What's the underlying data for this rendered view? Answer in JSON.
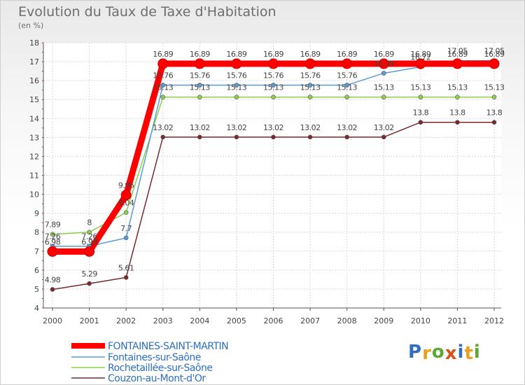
{
  "chart_data": {
    "type": "line",
    "title": "Evolution du Taux de Taxe d'Habitation",
    "ylabel": "(en %)",
    "xlabel": "",
    "ylim": [
      4,
      18
    ],
    "yticks": [
      "4",
      "5",
      "6",
      "7",
      "8",
      "9",
      "10",
      "11",
      "12",
      "13",
      "14",
      "15",
      "16",
      "17",
      "18"
    ],
    "x": [
      "2000",
      "2001",
      "2002",
      "2003",
      "2004",
      "2005",
      "2006",
      "2007",
      "2008",
      "2009",
      "2010",
      "2011",
      "2012"
    ],
    "series": [
      {
        "name": "FONTAINES-SAINT-MARTIN",
        "color": "#ff0000",
        "values": [
          6.98,
          6.98,
          9.96,
          16.89,
          16.89,
          16.89,
          16.89,
          16.89,
          16.89,
          16.89,
          16.89,
          16.89,
          16.89
        ],
        "labels": [
          "6.98",
          "6.98",
          "9.96",
          "16.89",
          "16.89",
          "16.89",
          "16.89",
          "16.89",
          "16.89",
          "16.89",
          "16.89",
          "16.89",
          "16.89"
        ]
      },
      {
        "name": "Fontaines-sur-Saône",
        "color": "#5b9bd5",
        "values": [
          7.26,
          7.26,
          7.7,
          15.76,
          15.76,
          15.76,
          15.76,
          15.76,
          15.76,
          16.39,
          16.72,
          17.05,
          17.05
        ],
        "labels": [
          "7.26",
          "7.26",
          "7.7",
          "15.76",
          "15.76",
          "15.76",
          "15.76",
          "15.76",
          "15.76",
          "16.39",
          "16.72",
          "17.05",
          "17.05"
        ]
      },
      {
        "name": "Rochetaillée-sur-Saône",
        "color": "#8ccf4d",
        "values": [
          7.89,
          8,
          9.04,
          15.13,
          15.13,
          15.13,
          15.13,
          15.13,
          15.13,
          15.13,
          15.13,
          15.13,
          15.13
        ],
        "labels": [
          "7.89",
          "8",
          "9.04",
          "15.13",
          "15.13",
          "15.13",
          "15.13",
          "15.13",
          "15.13",
          "15.13",
          "15.13",
          "15.13",
          "15.13"
        ]
      },
      {
        "name": "Couzon-au-Mont-d'Or",
        "color": "#7a2a2a",
        "values": [
          4.98,
          5.29,
          5.61,
          13.02,
          13.02,
          13.02,
          13.02,
          13.02,
          13.02,
          13.02,
          13.8,
          13.8,
          13.8
        ],
        "labels": [
          "4.98",
          "5.29",
          "5.61",
          "13.02",
          "13.02",
          "13.02",
          "13.02",
          "13.02",
          "13.02",
          "13.02",
          "13.8",
          "13.8",
          "13.8"
        ]
      }
    ],
    "legend_position": "bottom-left"
  },
  "logo": {
    "letters": [
      "P",
      "r",
      "o",
      "x",
      "i",
      "t",
      "i"
    ],
    "colors": [
      "#2e6fc4",
      "#e8a020",
      "#5aa832",
      "#d94f1a",
      "#2e6fc4",
      "#e8a020",
      "#5aa832"
    ]
  }
}
